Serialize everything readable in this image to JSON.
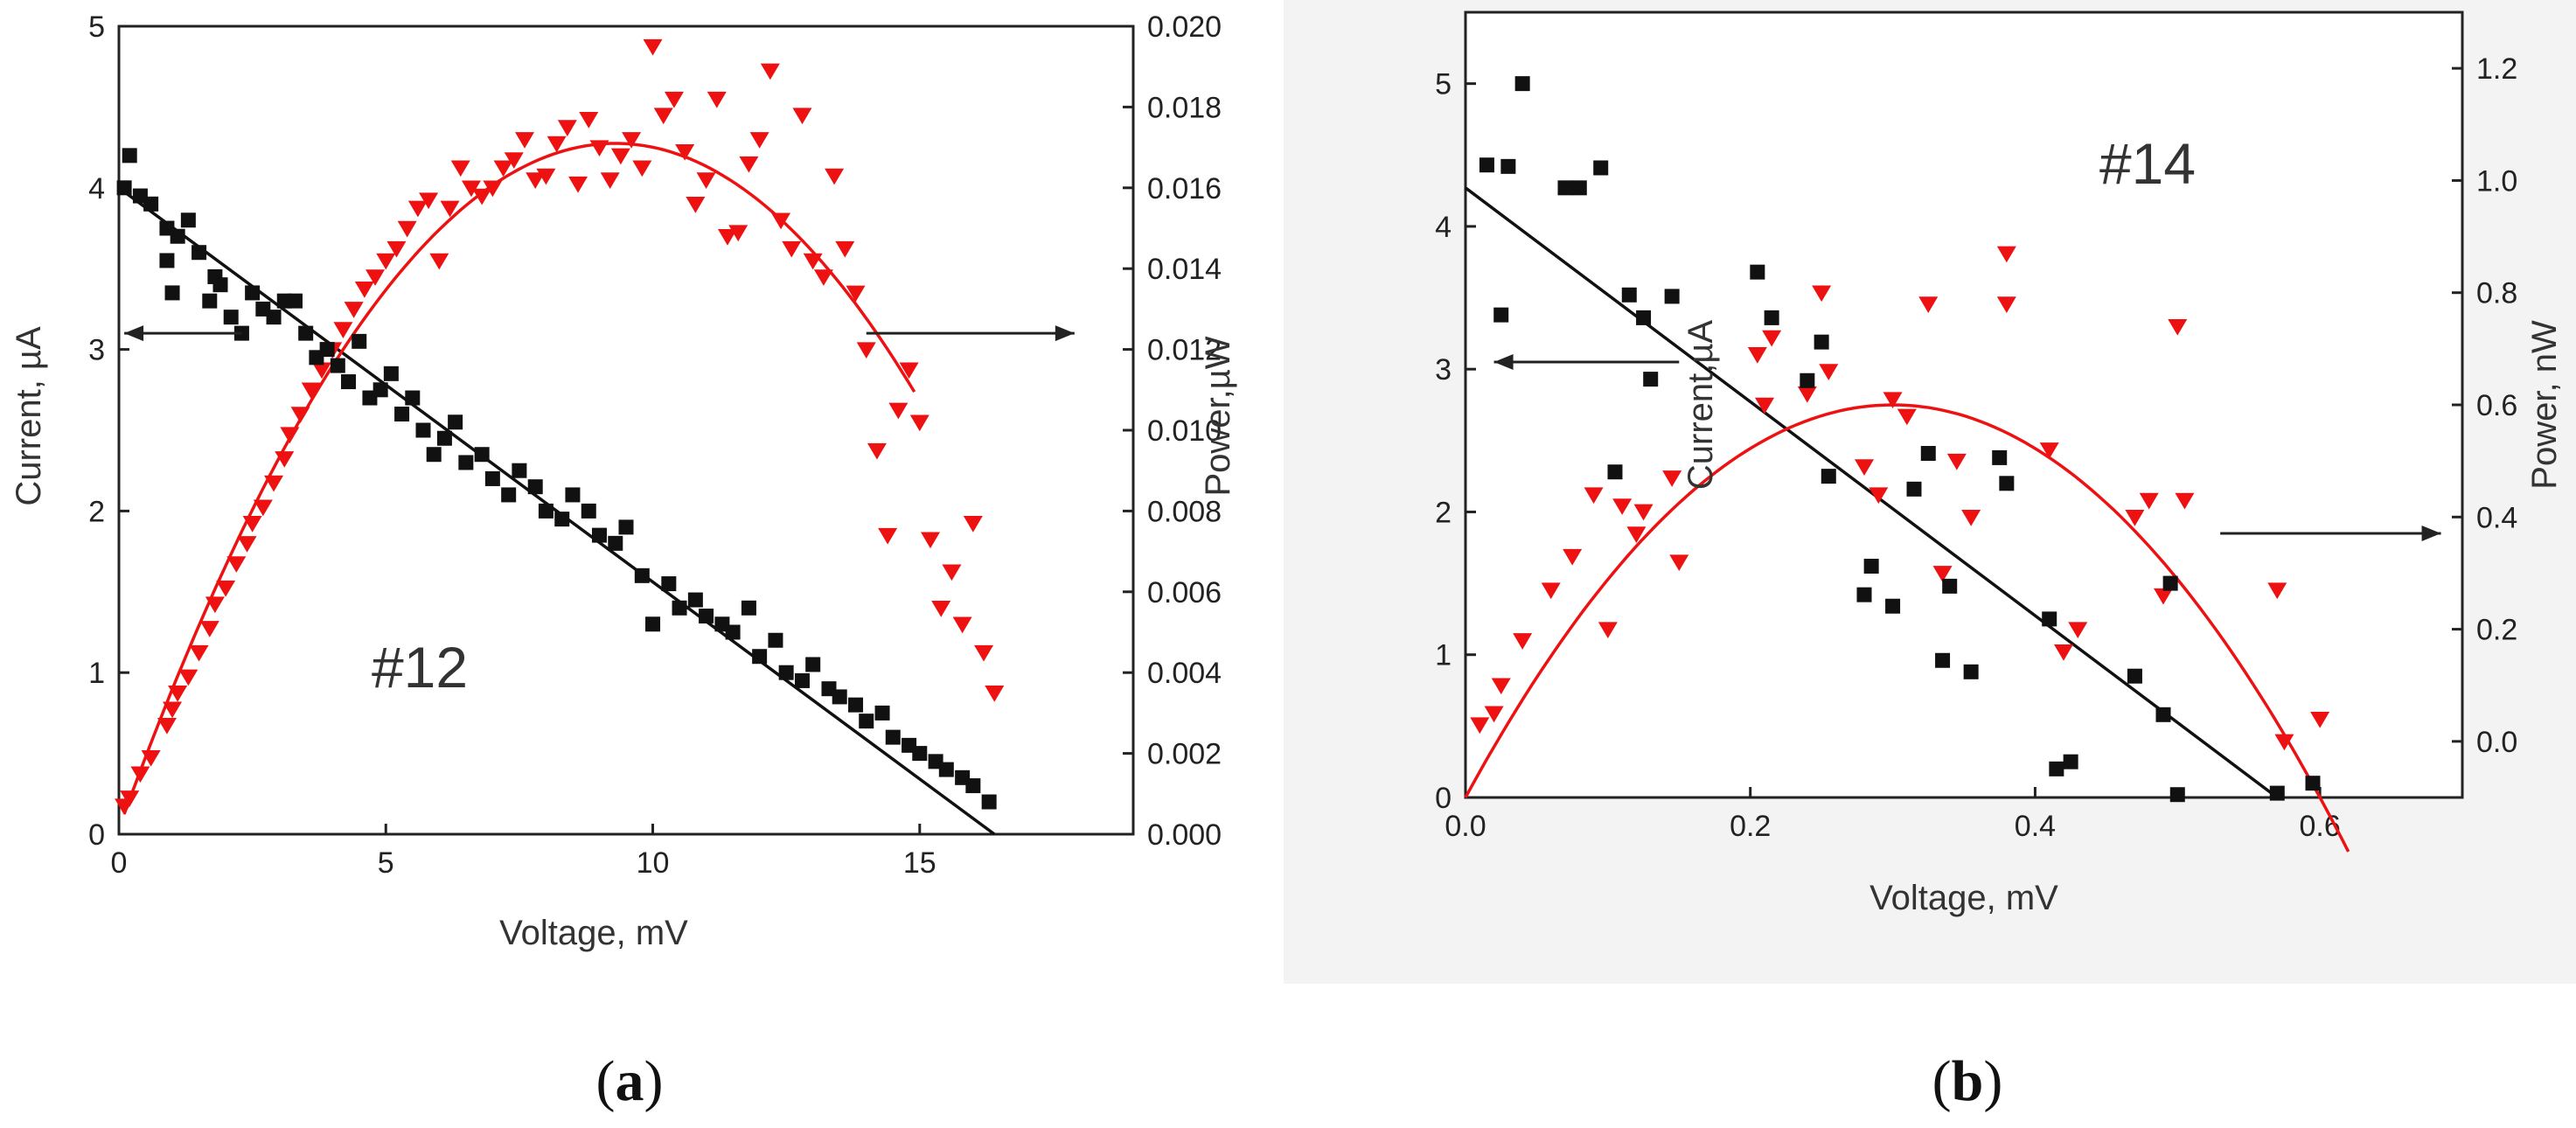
{
  "colors": {
    "current": "#111111",
    "power": "#ee1111",
    "background_b": "#f3f3f3"
  },
  "chart_data": [
    {
      "type": "scatter",
      "panel_label": "a",
      "annotation": "#12",
      "xlabel": "Voltage, mV",
      "ylabel_left": "Current, µA",
      "ylabel_right": "Power,µW",
      "xlim": [
        0,
        19
      ],
      "ylim_left": [
        0,
        5
      ],
      "ylim_right": [
        0,
        0.02
      ],
      "xticks": [
        0,
        5,
        10,
        15
      ],
      "xtick_labels": [
        "0",
        "5",
        "10",
        "15"
      ],
      "yticks_left": [
        0,
        1,
        2,
        3,
        4,
        5
      ],
      "ytick_labels_left": [
        "0",
        "1",
        "2",
        "3",
        "4",
        "5"
      ],
      "yticks_right": [
        0,
        0.002,
        0.004,
        0.006,
        0.008,
        0.01,
        0.012,
        0.014,
        0.016,
        0.018,
        0.02
      ],
      "ytick_labels_right": [
        "0.000",
        "0.002",
        "0.004",
        "0.006",
        "0.008",
        "0.010",
        "0.012",
        "0.014",
        "0.016",
        "0.018",
        "0.020"
      ],
      "arrow_left": {
        "x_from": 2.3,
        "x_to": 0.1,
        "y": 3.1
      },
      "arrow_right": {
        "x_from": 14.0,
        "x_to": 17.9,
        "y": 3.1
      },
      "current_series": {
        "name": "Current",
        "marker": "square",
        "x": [
          0.1,
          0.2,
          0.4,
          0.6,
          0.9,
          0.9,
          1.0,
          1.1,
          1.3,
          1.5,
          1.7,
          1.8,
          1.9,
          2.1,
          2.3,
          2.5,
          2.7,
          2.9,
          3.1,
          3.3,
          3.5,
          3.7,
          3.9,
          4.1,
          4.3,
          4.5,
          4.7,
          4.9,
          5.1,
          5.3,
          5.5,
          5.7,
          5.9,
          6.1,
          6.3,
          6.5,
          6.8,
          7.0,
          7.3,
          7.5,
          7.8,
          8.0,
          8.3,
          8.5,
          8.8,
          9.0,
          9.3,
          9.5,
          9.8,
          10.0,
          10.3,
          10.5,
          10.8,
          11.0,
          11.3,
          11.5,
          11.8,
          12.0,
          12.3,
          12.5,
          12.8,
          13.0,
          13.3,
          13.5,
          13.8,
          14.0,
          14.3,
          14.5,
          14.8,
          15.0,
          15.3,
          15.5,
          15.8,
          16.0,
          16.3
        ],
        "y": [
          4.0,
          4.2,
          3.95,
          3.9,
          3.75,
          3.55,
          3.35,
          3.7,
          3.8,
          3.6,
          3.3,
          3.45,
          3.4,
          3.2,
          3.1,
          3.35,
          3.25,
          3.2,
          3.3,
          3.3,
          3.1,
          2.95,
          3.0,
          2.9,
          2.8,
          3.05,
          2.7,
          2.75,
          2.85,
          2.6,
          2.7,
          2.5,
          2.35,
          2.45,
          2.55,
          2.3,
          2.35,
          2.2,
          2.1,
          2.25,
          2.15,
          2.0,
          1.95,
          2.1,
          2.0,
          1.85,
          1.8,
          1.9,
          1.6,
          1.3,
          1.55,
          1.4,
          1.45,
          1.35,
          1.3,
          1.25,
          1.4,
          1.1,
          1.2,
          1.0,
          0.95,
          1.05,
          0.9,
          0.85,
          0.8,
          0.7,
          0.75,
          0.6,
          0.55,
          0.5,
          0.45,
          0.4,
          0.35,
          0.3,
          0.2
        ]
      },
      "current_fit": {
        "name": "Current linear fit",
        "x": [
          0,
          16.4
        ],
        "y": [
          4.0,
          0.0
        ]
      },
      "power_series": {
        "name": "Power",
        "marker": "triangle-down",
        "x": [
          0.1,
          0.2,
          0.4,
          0.6,
          0.9,
          1.0,
          1.1,
          1.3,
          1.5,
          1.7,
          1.8,
          2.0,
          2.2,
          2.4,
          2.5,
          2.7,
          2.9,
          3.1,
          3.2,
          3.4,
          3.6,
          3.8,
          4.0,
          4.2,
          4.4,
          4.6,
          4.8,
          5.0,
          5.2,
          5.4,
          5.6,
          5.8,
          6.0,
          6.2,
          6.4,
          6.6,
          6.8,
          7.0,
          7.2,
          7.4,
          7.6,
          7.8,
          8.0,
          8.2,
          8.4,
          8.6,
          8.8,
          9.0,
          9.2,
          9.4,
          9.6,
          9.8,
          10.0,
          10.2,
          10.4,
          10.6,
          10.8,
          11.0,
          11.2,
          11.4,
          11.6,
          11.8,
          12.0,
          12.2,
          12.4,
          12.6,
          12.8,
          13.0,
          13.2,
          13.4,
          13.6,
          13.8,
          14.0,
          14.2,
          14.4,
          14.6,
          14.8,
          15.0,
          15.2,
          15.4,
          15.6,
          15.8,
          16.0,
          16.2,
          16.4
        ],
        "y": [
          0.0007,
          0.0009,
          0.0015,
          0.0019,
          0.0027,
          0.0031,
          0.0035,
          0.0039,
          0.0045,
          0.0051,
          0.0057,
          0.0061,
          0.0067,
          0.0072,
          0.0077,
          0.0081,
          0.0087,
          0.0093,
          0.0099,
          0.0104,
          0.011,
          0.0115,
          0.012,
          0.0125,
          0.013,
          0.0135,
          0.0138,
          0.0142,
          0.0145,
          0.015,
          0.0155,
          0.0157,
          0.0142,
          0.0155,
          0.0165,
          0.016,
          0.0158,
          0.016,
          0.0165,
          0.0167,
          0.0172,
          0.0162,
          0.0163,
          0.0171,
          0.0175,
          0.0161,
          0.0177,
          0.017,
          0.0162,
          0.0168,
          0.0172,
          0.0165,
          0.0195,
          0.0178,
          0.0182,
          0.0169,
          0.0156,
          0.0162,
          0.0182,
          0.0148,
          0.0149,
          0.0166,
          0.0172,
          0.0189,
          0.0152,
          0.0145,
          0.0178,
          0.0142,
          0.0138,
          0.0163,
          0.0145,
          0.0134,
          0.012,
          0.0095,
          0.0074,
          0.0105,
          0.0115,
          0.0102,
          0.0073,
          0.0056,
          0.0065,
          0.0052,
          0.0077,
          0.0045,
          0.0035
        ]
      },
      "power_fit": {
        "name": "Power parabolic fit",
        "x_range": [
          0.1,
          14.9
        ],
        "vertex_x": 9.3,
        "vertex_y": 0.0171,
        "y_at_start": 0.0005
      }
    },
    {
      "type": "scatter",
      "panel_label": "b",
      "annotation": "#14",
      "xlabel": "Voltage, mV",
      "ylabel_left": "Current,µA",
      "ylabel_right": "Power, nW",
      "xlim": [
        0,
        0.7
      ],
      "ylim_left": [
        0,
        5.5
      ],
      "ylim_right": [
        -0.1,
        1.3
      ],
      "xticks": [
        0.0,
        0.2,
        0.4,
        0.6
      ],
      "xtick_labels": [
        "0.0",
        "0.2",
        "0.4",
        "0.6"
      ],
      "yticks_left": [
        0,
        1,
        2,
        3,
        4,
        5
      ],
      "ytick_labels_left": [
        "0",
        "1",
        "2",
        "3",
        "4",
        "5"
      ],
      "yticks_right": [
        0.0,
        0.2,
        0.4,
        0.6,
        0.8,
        1.0,
        1.2
      ],
      "ytick_labels_right": [
        "0.0",
        "0.2",
        "0.4",
        "0.6",
        "0.8",
        "1.0",
        "1.2"
      ],
      "arrow_left": {
        "x_from": 0.15,
        "x_to": 0.02,
        "y": 3.05
      },
      "arrow_right": {
        "x_from": 0.53,
        "x_to": 0.685,
        "y": 1.85
      },
      "current_series": {
        "name": "Current",
        "marker": "square",
        "x": [
          0.015,
          0.025,
          0.03,
          0.04,
          0.07,
          0.08,
          0.095,
          0.105,
          0.115,
          0.125,
          0.13,
          0.145,
          0.205,
          0.215,
          0.24,
          0.25,
          0.255,
          0.28,
          0.285,
          0.3,
          0.315,
          0.325,
          0.335,
          0.34,
          0.355,
          0.375,
          0.38,
          0.41,
          0.415,
          0.425,
          0.47,
          0.49,
          0.495,
          0.5,
          0.57,
          0.595
        ],
        "y": [
          4.43,
          3.38,
          4.42,
          5.0,
          4.27,
          4.27,
          4.41,
          2.28,
          3.52,
          3.36,
          2.93,
          3.51,
          3.68,
          3.36,
          2.92,
          3.19,
          2.25,
          1.42,
          1.62,
          1.34,
          2.16,
          2.41,
          0.96,
          1.48,
          0.88,
          2.38,
          2.2,
          1.25,
          0.2,
          0.25,
          0.85,
          0.58,
          1.5,
          0.02,
          0.03,
          0.1
        ]
      },
      "current_fit": {
        "name": "Current linear fit",
        "x": [
          0.0,
          0.57
        ],
        "y": [
          4.27,
          0.0
        ]
      },
      "power_series": {
        "name": "Power",
        "marker": "triangle-down",
        "x": [
          0.01,
          0.02,
          0.025,
          0.04,
          0.06,
          0.075,
          0.09,
          0.1,
          0.11,
          0.12,
          0.125,
          0.145,
          0.15,
          0.205,
          0.21,
          0.215,
          0.24,
          0.25,
          0.255,
          0.28,
          0.29,
          0.3,
          0.31,
          0.325,
          0.335,
          0.345,
          0.355,
          0.38,
          0.38,
          0.41,
          0.42,
          0.43,
          0.47,
          0.48,
          0.49,
          0.5,
          0.505,
          0.57,
          0.575,
          0.6
        ],
        "y": [
          0.03,
          0.05,
          0.1,
          0.18,
          0.27,
          0.33,
          0.44,
          0.2,
          0.42,
          0.37,
          0.41,
          0.47,
          0.32,
          0.69,
          0.6,
          0.72,
          0.62,
          0.8,
          0.66,
          0.49,
          0.44,
          0.61,
          0.58,
          0.78,
          0.3,
          0.5,
          0.4,
          0.87,
          0.78,
          0.52,
          0.16,
          0.2,
          0.4,
          0.43,
          0.26,
          0.74,
          0.43,
          0.27,
          0.0,
          0.04
        ]
      },
      "power_fit": {
        "name": "Power parabolic fit",
        "x_range": [
          0.0,
          0.62
        ],
        "vertex_x": 0.3,
        "vertex_y": 0.6,
        "y_at_start": -0.1
      }
    }
  ]
}
